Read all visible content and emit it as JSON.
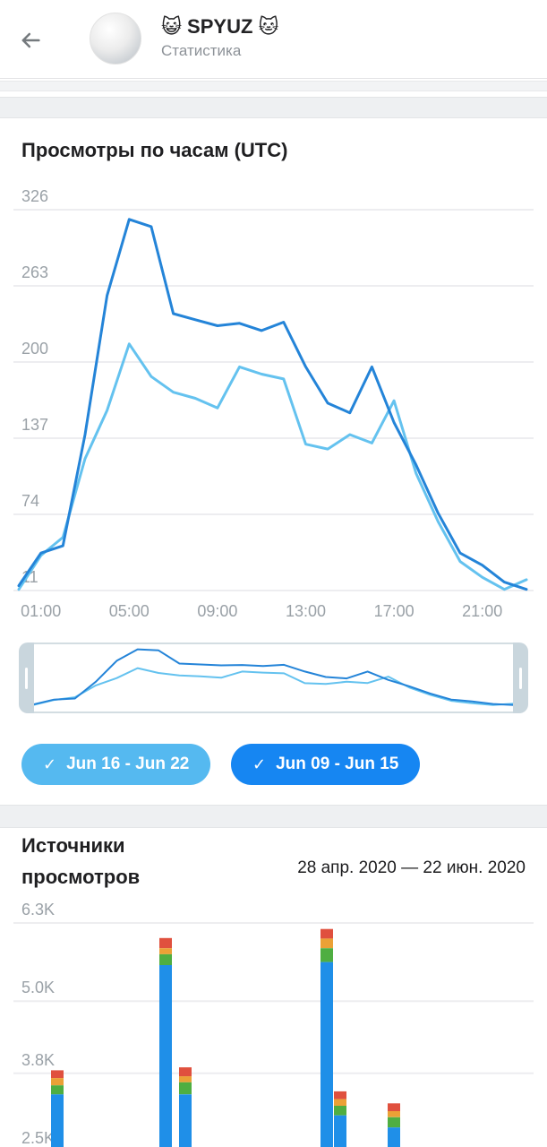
{
  "header": {
    "title": "😺 SPYUZ 🐱",
    "subtitle": "Статистика"
  },
  "hourly": {
    "title": "Просмотры по часам (UTC)"
  },
  "pills": [
    {
      "label": "Jun 16 - Jun 22",
      "check": "✓",
      "color": "#55B9F0"
    },
    {
      "label": "Jun 09 - Jun 15",
      "check": "✓",
      "color": "#1686F2"
    }
  ],
  "sources": {
    "title": "Источники просмотров",
    "date_range": "28 апр. 2020 — 22 июн. 2020"
  },
  "chart_data": [
    {
      "type": "line",
      "title": "Просмотры по часам (UTC)",
      "x": [
        "00:00",
        "01:00",
        "02:00",
        "03:00",
        "04:00",
        "05:00",
        "06:00",
        "07:00",
        "08:00",
        "09:00",
        "10:00",
        "11:00",
        "12:00",
        "13:00",
        "14:00",
        "15:00",
        "16:00",
        "17:00",
        "18:00",
        "19:00",
        "20:00",
        "21:00",
        "22:00",
        "23:00"
      ],
      "x_tick_labels": [
        "01:00",
        "05:00",
        "09:00",
        "13:00",
        "17:00",
        "21:00"
      ],
      "y_ticks": [
        11,
        74,
        137,
        200,
        263,
        326
      ],
      "ylim": [
        11,
        326
      ],
      "grid": true,
      "legend_position": "below",
      "series": [
        {
          "name": "Jun 16 - Jun 22",
          "color": "#64C2EF",
          "values": [
            12,
            40,
            55,
            120,
            160,
            215,
            188,
            175,
            170,
            162,
            196,
            190,
            186,
            132,
            128,
            140,
            133,
            168,
            108,
            68,
            35,
            22,
            12,
            20
          ]
        },
        {
          "name": "Jun 09 - Jun 15",
          "color": "#2484D8",
          "values": [
            15,
            42,
            48,
            140,
            255,
            318,
            312,
            240,
            235,
            230,
            232,
            226,
            233,
            196,
            166,
            158,
            196,
            150,
            115,
            75,
            42,
            32,
            18,
            12
          ]
        }
      ]
    },
    {
      "type": "stacked_bar",
      "title": "Источники просмотров",
      "date_range": "28 апр. 2020 — 22 июн. 2020",
      "y_ticks": [
        6300,
        5000,
        3800,
        2500
      ],
      "y_tick_labels": [
        "6.3K",
        "5.0K",
        "3.8K",
        "2.5K"
      ],
      "ylim_visible": [
        2500,
        6600
      ],
      "segment_order_bottom_to_top": [
        "blue",
        "green",
        "orange",
        "red"
      ],
      "segment_colors": {
        "blue": "#1F8FE8",
        "green": "#4FAE41",
        "orange": "#EBA136",
        "red": "#E0503E"
      },
      "bars": [
        {
          "x_frac": 0.094,
          "segments": {
            "blue": 3450,
            "green": 150,
            "orange": 120,
            "red": 130
          }
        },
        {
          "x_frac": 0.291,
          "segments": {
            "blue": 5600,
            "green": 180,
            "orange": 100,
            "red": 170
          }
        },
        {
          "x_frac": 0.328,
          "segments": {
            "blue": 3450,
            "green": 200,
            "orange": 100,
            "red": 150
          }
        },
        {
          "x_frac": 0.586,
          "segments": {
            "blue": 5650,
            "green": 230,
            "orange": 160,
            "red": 160
          }
        },
        {
          "x_frac": 0.611,
          "segments": {
            "blue": 3100,
            "green": 160,
            "orange": 110,
            "red": 130
          }
        },
        {
          "x_frac": 0.709,
          "segments": {
            "blue": 2900,
            "green": 170,
            "orange": 100,
            "red": 130
          }
        }
      ]
    }
  ]
}
